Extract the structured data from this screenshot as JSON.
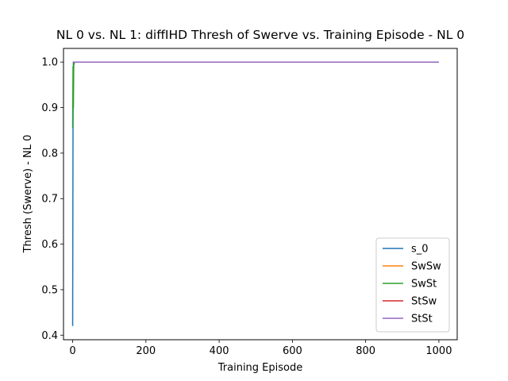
{
  "chart_data": {
    "type": "line",
    "title": "NL 0 vs. NL 1: diffIHD Thresh of Swerve vs. Training Episode - NL 0",
    "xlabel": "Training Episode",
    "ylabel": "Thresh (Swerve) - NL 0",
    "xlim": [
      -25,
      1050
    ],
    "ylim": [
      0.39,
      1.03
    ],
    "xticks": [
      0,
      200,
      400,
      600,
      800,
      1000
    ],
    "xtick_labels": [
      "0",
      "200",
      "400",
      "600",
      "800",
      "1000"
    ],
    "yticks": [
      0.4,
      0.5,
      0.6,
      0.7,
      0.8,
      0.9,
      1.0
    ],
    "ytick_labels": [
      "0.4",
      "0.5",
      "0.6",
      "0.7",
      "0.8",
      "0.9",
      "1.0"
    ],
    "grid": false,
    "legend_position": "bottom-right",
    "series": [
      {
        "name": "s_0",
        "color": "#1f77b4",
        "x": [
          0,
          1,
          2,
          3,
          5,
          10,
          50,
          100,
          500,
          1000
        ],
        "y": [
          0.42,
          0.86,
          1.0,
          1.0,
          1.0,
          1.0,
          1.0,
          1.0,
          1.0,
          1.0
        ]
      },
      {
        "name": "SwSw",
        "color": "#ff7f0e",
        "x": [
          0,
          5,
          10,
          50,
          100,
          500,
          1000
        ],
        "y": [
          1.0,
          1.0,
          1.0,
          1.0,
          1.0,
          1.0,
          1.0
        ]
      },
      {
        "name": "SwSt",
        "color": "#2ca02c",
        "x": [
          0,
          1,
          2,
          3,
          4,
          5,
          10,
          50,
          100,
          500,
          1000
        ],
        "y": [
          0.855,
          0.99,
          0.9,
          1.0,
          0.995,
          1.0,
          1.0,
          1.0,
          1.0,
          1.0,
          1.0
        ]
      },
      {
        "name": "StSw",
        "color": "#d62728",
        "x": [
          0,
          5,
          10,
          50,
          100,
          500,
          1000
        ],
        "y": [
          1.0,
          1.0,
          1.0,
          1.0,
          1.0,
          1.0,
          1.0
        ]
      },
      {
        "name": "StSt",
        "color": "#9467bd",
        "x": [
          0,
          5,
          10,
          50,
          100,
          500,
          1000
        ],
        "y": [
          1.0,
          1.0,
          1.0,
          1.0,
          1.0,
          1.0,
          1.0
        ]
      }
    ]
  }
}
